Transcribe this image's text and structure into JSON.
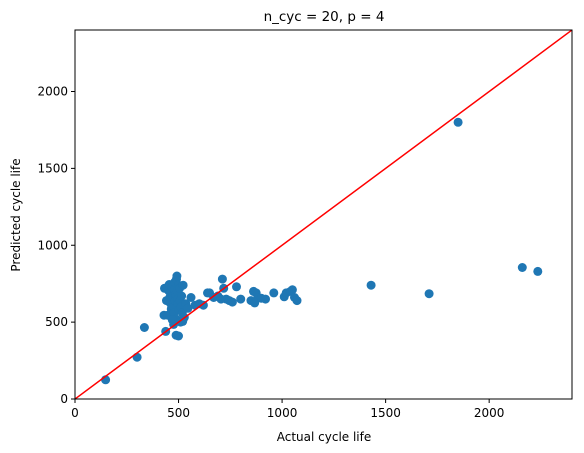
{
  "chart_data": {
    "type": "scatter",
    "title": "n_cyc = 20, p = 4",
    "xlabel": "Actual cycle life",
    "ylabel": "Predicted cycle life",
    "xlim": [
      0,
      2400
    ],
    "ylim": [
      0,
      2400
    ],
    "xticks": [
      0,
      500,
      1000,
      1500,
      2000
    ],
    "yticks": [
      0,
      500,
      1000,
      1500,
      2000
    ],
    "grid": false,
    "colors": {
      "points": "#1f77b4",
      "reference_line": "#ff0000"
    },
    "reference_line": {
      "from": [
        0,
        0
      ],
      "to": [
        2400,
        2400
      ]
    },
    "points": [
      [
        148,
        125
      ],
      [
        300,
        272
      ],
      [
        335,
        465
      ],
      [
        430,
        545
      ],
      [
        432,
        720
      ],
      [
        438,
        440
      ],
      [
        442,
        640
      ],
      [
        448,
        545
      ],
      [
        452,
        705
      ],
      [
        455,
        745
      ],
      [
        458,
        660
      ],
      [
        460,
        690
      ],
      [
        462,
        620
      ],
      [
        465,
        585
      ],
      [
        468,
        730
      ],
      [
        470,
        650
      ],
      [
        472,
        670
      ],
      [
        475,
        600
      ],
      [
        478,
        560
      ],
      [
        480,
        710
      ],
      [
        482,
        760
      ],
      [
        484,
        640
      ],
      [
        486,
        680
      ],
      [
        488,
        520
      ],
      [
        490,
        780
      ],
      [
        492,
        800
      ],
      [
        494,
        700
      ],
      [
        496,
        650
      ],
      [
        498,
        620
      ],
      [
        500,
        740
      ],
      [
        502,
        580
      ],
      [
        505,
        720
      ],
      [
        508,
        640
      ],
      [
        512,
        600
      ],
      [
        515,
        670
      ],
      [
        518,
        560
      ],
      [
        522,
        740
      ],
      [
        528,
        530
      ],
      [
        535,
        620
      ],
      [
        470,
        515
      ],
      [
        476,
        485
      ],
      [
        488,
        415
      ],
      [
        500,
        410
      ],
      [
        510,
        500
      ],
      [
        520,
        505
      ],
      [
        545,
        590
      ],
      [
        560,
        660
      ],
      [
        580,
        610
      ],
      [
        600,
        620
      ],
      [
        620,
        610
      ],
      [
        640,
        690
      ],
      [
        650,
        690
      ],
      [
        670,
        660
      ],
      [
        690,
        670
      ],
      [
        705,
        650
      ],
      [
        712,
        780
      ],
      [
        718,
        720
      ],
      [
        730,
        650
      ],
      [
        745,
        640
      ],
      [
        760,
        630
      ],
      [
        780,
        730
      ],
      [
        800,
        650
      ],
      [
        850,
        640
      ],
      [
        862,
        700
      ],
      [
        868,
        625
      ],
      [
        875,
        690
      ],
      [
        885,
        660
      ],
      [
        900,
        655
      ],
      [
        920,
        650
      ],
      [
        960,
        690
      ],
      [
        1010,
        665
      ],
      [
        1020,
        690
      ],
      [
        1040,
        700
      ],
      [
        1050,
        710
      ],
      [
        1060,
        660
      ],
      [
        1072,
        640
      ],
      [
        1430,
        740
      ],
      [
        1710,
        685
      ],
      [
        1850,
        1800
      ],
      [
        2160,
        855
      ],
      [
        2235,
        830
      ]
    ]
  }
}
